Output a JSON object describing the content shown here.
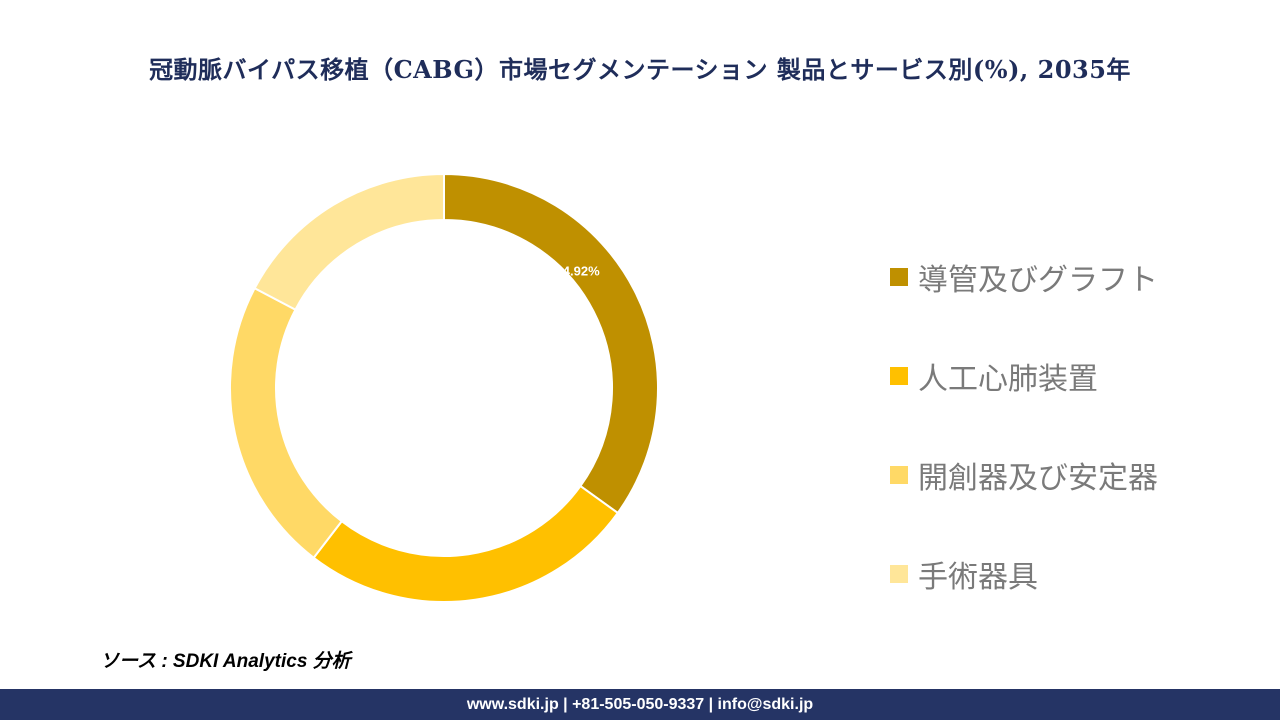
{
  "title": "冠動脈バイパス移植（CABG）市場セグメンテーション 製品とサービス別(%), 2035年",
  "chart_data": {
    "type": "pie",
    "donut": true,
    "title": "冠動脈バイパス移植（CABG）市場セグメンテーション 製品とサービス別(%), 2035年",
    "categories": [
      "導管及びグラフト",
      "人工心肺装置",
      "開創器及び安定器",
      "手術器具"
    ],
    "values": [
      34.92,
      25.5,
      22.3,
      17.28
    ],
    "data_labels": [
      "34.92%",
      "",
      "",
      ""
    ],
    "colors": [
      "#bf9000",
      "#ffc000",
      "#ffd966",
      "#ffe699"
    ],
    "legend_position": "right"
  },
  "source": "ソース : SDKI Analytics 分析",
  "footer": "www.sdki.jp | +81-505-050-9337 | info@sdki.jp"
}
